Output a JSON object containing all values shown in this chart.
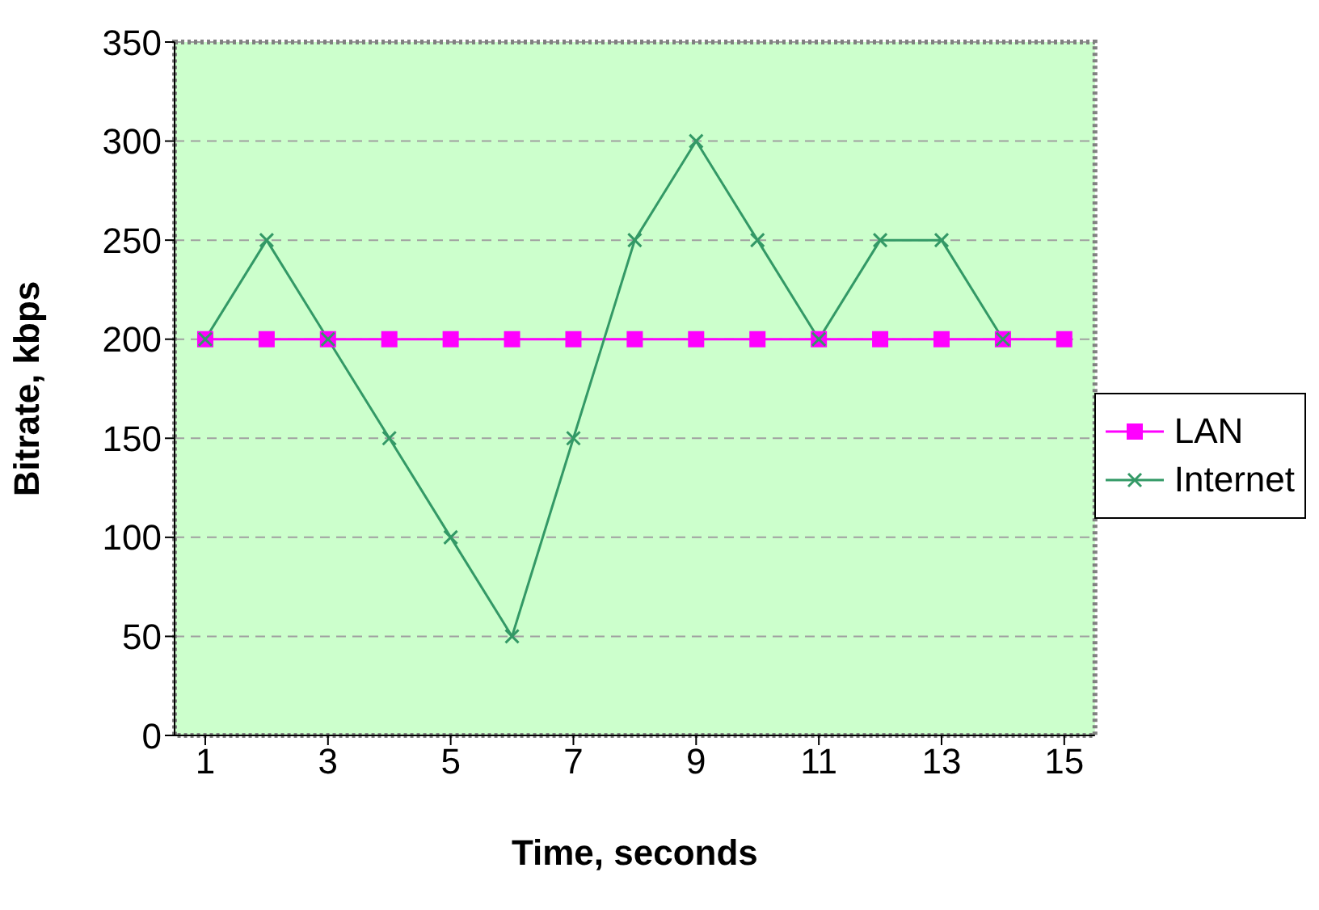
{
  "chart_data": {
    "type": "line",
    "xlabel": "Time, seconds",
    "ylabel": "Bitrate, kbps",
    "x": [
      1,
      2,
      3,
      4,
      5,
      6,
      7,
      8,
      9,
      10,
      11,
      12,
      13,
      14,
      15
    ],
    "xlim": [
      0.5,
      15.5
    ],
    "xticks": [
      1,
      3,
      5,
      7,
      9,
      11,
      13,
      15
    ],
    "series": [
      {
        "name": "LAN",
        "color": "#ff00ff",
        "marker": "square",
        "values": [
          200,
          200,
          200,
          200,
          200,
          200,
          200,
          200,
          200,
          200,
          200,
          200,
          200,
          200,
          200
        ]
      },
      {
        "name": "Internet",
        "color": "#339966",
        "marker": "cross",
        "values": [
          200,
          250,
          200,
          150,
          100,
          50,
          150,
          250,
          300,
          250,
          200,
          250,
          250,
          200,
          null
        ]
      }
    ],
    "ylim": [
      0,
      350
    ],
    "yticks": [
      0,
      50,
      100,
      150,
      200,
      250,
      300,
      350
    ],
    "grid": "y",
    "legend": "right"
  }
}
